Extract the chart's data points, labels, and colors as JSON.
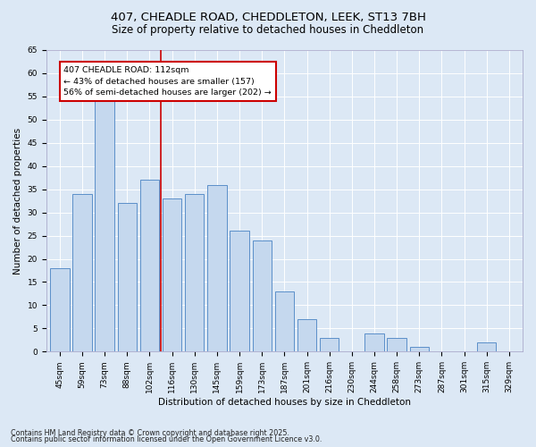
{
  "title1": "407, CHEADLE ROAD, CHEDDLETON, LEEK, ST13 7BH",
  "title2": "Size of property relative to detached houses in Cheddleton",
  "xlabel": "Distribution of detached houses by size in Cheddleton",
  "ylabel": "Number of detached properties",
  "categories": [
    "45sqm",
    "59sqm",
    "73sqm",
    "88sqm",
    "102sqm",
    "116sqm",
    "130sqm",
    "145sqm",
    "159sqm",
    "173sqm",
    "187sqm",
    "201sqm",
    "216sqm",
    "230sqm",
    "244sqm",
    "258sqm",
    "273sqm",
    "287sqm",
    "301sqm",
    "315sqm",
    "329sqm"
  ],
  "values": [
    18,
    34,
    54,
    32,
    37,
    33,
    34,
    36,
    26,
    24,
    13,
    7,
    3,
    0,
    4,
    3,
    1,
    0,
    0,
    2,
    0
  ],
  "bar_color": "#c5d8ee",
  "bar_edge_color": "#5b8fc9",
  "ylim": [
    0,
    65
  ],
  "yticks": [
    0,
    5,
    10,
    15,
    20,
    25,
    30,
    35,
    40,
    45,
    50,
    55,
    60,
    65
  ],
  "property_line_x": 4.5,
  "annotation_box_text": "407 CHEADLE ROAD: 112sqm\n← 43% of detached houses are smaller (157)\n56% of semi-detached houses are larger (202) →",
  "vline_color": "#cc0000",
  "bg_color": "#dce8f5",
  "plot_bg_color": "#dce8f5",
  "footer_line1": "Contains HM Land Registry data © Crown copyright and database right 2025.",
  "footer_line2": "Contains public sector information licensed under the Open Government Licence v3.0.",
  "title1_fontsize": 9.5,
  "title2_fontsize": 8.5,
  "xlabel_fontsize": 7.5,
  "ylabel_fontsize": 7.5,
  "tick_fontsize": 6.5,
  "annot_fontsize": 6.8,
  "footer_fontsize": 5.8
}
